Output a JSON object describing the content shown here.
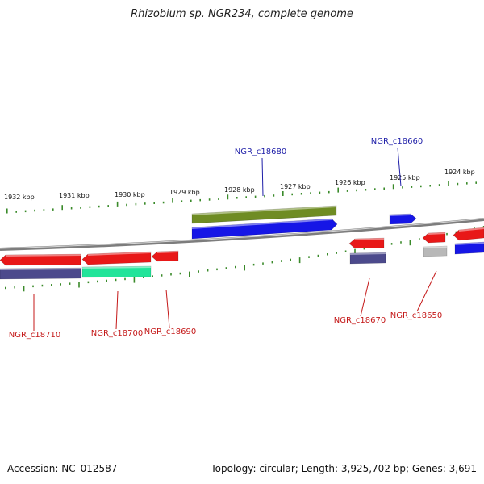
{
  "title": "Rhizobium sp. NGR234, complete genome",
  "footer": {
    "accession": "Accession: NC_012587",
    "summary": "Topology: circular; Length: 3,925,702 bp; Genes: 3,691"
  },
  "colors": {
    "backbone": "#8a8a8a",
    "ruler_tick": "#3a8a2a",
    "forward_label": "#1e1ea8",
    "reverse_label": "#c41818",
    "red": "#e81818",
    "blue": "#1616e6",
    "olive": "#6f8c24",
    "slate": "#4c4a8c",
    "mint": "#22e49a",
    "gray": "#b8b8b8"
  },
  "ticks": [
    {
      "label": "1932 kbp"
    },
    {
      "label": "1931 kbp"
    },
    {
      "label": "1930 kbp"
    },
    {
      "label": "1929 kbp"
    },
    {
      "label": "1928 kbp"
    },
    {
      "label": "1927 kbp"
    },
    {
      "label": "1926 kbp"
    },
    {
      "label": "1925 kbp"
    },
    {
      "label": "1924 kbp"
    }
  ],
  "genes": [
    {
      "id": "olive-forward",
      "color": "olive"
    },
    {
      "id": "blue-forward-1",
      "color": "blue"
    },
    {
      "id": "blue-forward-2",
      "color": "blue"
    },
    {
      "id": "red-reverse-left",
      "color": "red"
    },
    {
      "id": "red-reverse-mid",
      "color": "red"
    },
    {
      "id": "red-reverse-small",
      "color": "red"
    },
    {
      "id": "slate-left",
      "color": "slate"
    },
    {
      "id": "mint",
      "color": "mint"
    },
    {
      "id": "red-reverse-c18670",
      "color": "red"
    },
    {
      "id": "slate-c18670",
      "color": "slate"
    },
    {
      "id": "red-reverse-c18650",
      "color": "red"
    },
    {
      "id": "gray-c18650",
      "color": "gray"
    },
    {
      "id": "red-right-edge",
      "color": "red"
    },
    {
      "id": "blue-right-edge",
      "color": "blue"
    }
  ],
  "labels": [
    {
      "text": "NGR_c18680",
      "strand": "forward"
    },
    {
      "text": "NGR_c18660",
      "strand": "forward"
    },
    {
      "text": "NGR_c18710",
      "strand": "reverse"
    },
    {
      "text": "NGR_c18700",
      "strand": "reverse"
    },
    {
      "text": "NGR_c18690",
      "strand": "reverse"
    },
    {
      "text": "NGR_c18670",
      "strand": "reverse"
    },
    {
      "text": "NGR_c18650",
      "strand": "reverse"
    }
  ]
}
